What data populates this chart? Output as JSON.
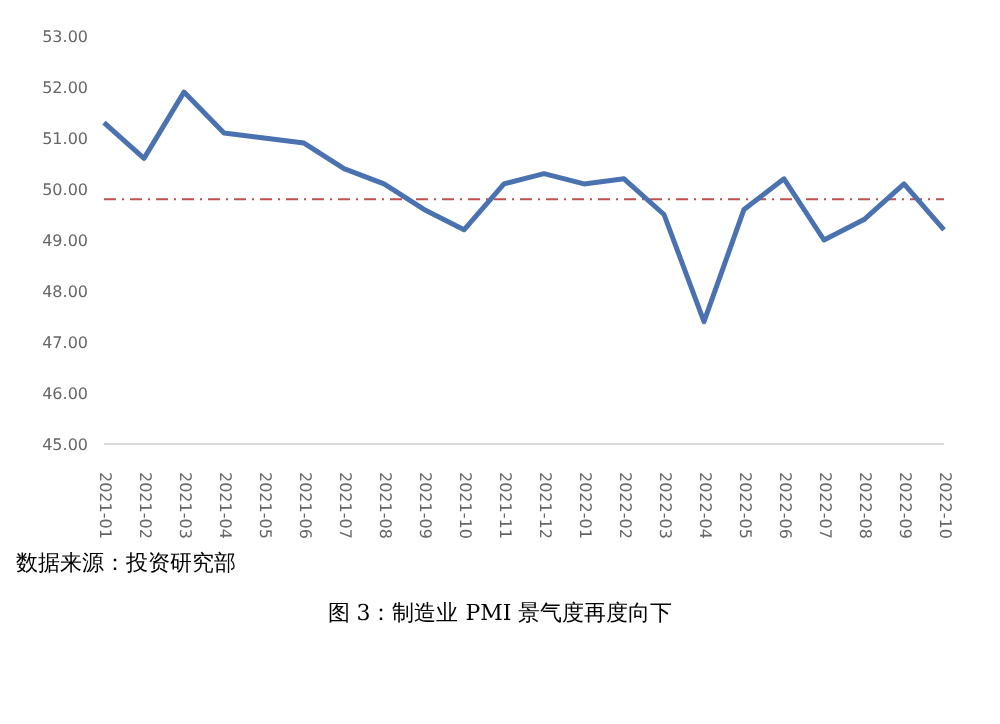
{
  "chart_data": {
    "type": "line",
    "categories": [
      "2021-01",
      "2021-02",
      "2021-03",
      "2021-04",
      "2021-05",
      "2021-06",
      "2021-07",
      "2021-08",
      "2021-09",
      "2021-10",
      "2021-11",
      "2021-12",
      "2022-01",
      "2022-02",
      "2022-03",
      "2022-04",
      "2022-05",
      "2022-06",
      "2022-07",
      "2022-08",
      "2022-09",
      "2022-10"
    ],
    "series": [
      {
        "color": "#4a72b0",
        "values": [
          51.3,
          50.6,
          51.9,
          51.1,
          51.0,
          50.9,
          50.4,
          50.1,
          49.6,
          49.2,
          50.1,
          50.3,
          50.1,
          50.2,
          49.5,
          47.4,
          49.6,
          50.2,
          49.0,
          49.4,
          50.1,
          49.2
        ]
      }
    ],
    "ylim": [
      45,
      53
    ],
    "yticks": [
      {
        "value": 45,
        "label": "45.00"
      },
      {
        "value": 46,
        "label": "46.00"
      },
      {
        "value": 47,
        "label": "47.00"
      },
      {
        "value": 48,
        "label": "48.00"
      },
      {
        "value": 49,
        "label": "49.00"
      },
      {
        "value": 50,
        "label": "50.00"
      },
      {
        "value": 51,
        "label": "51.00"
      },
      {
        "value": 52,
        "label": "52.00"
      },
      {
        "value": 53,
        "label": "53.00"
      }
    ],
    "ref_lines": [
      {
        "axis": "y",
        "value": 49.8,
        "color": "#c0504d",
        "line_style": "dashed"
      }
    ],
    "grid": false,
    "legend": false,
    "marker": "none",
    "line_style": "solid",
    "annotations": [
      "数据来源：投资研究部",
      "图 3：制造业 PMI 景气度再度向下"
    ]
  }
}
